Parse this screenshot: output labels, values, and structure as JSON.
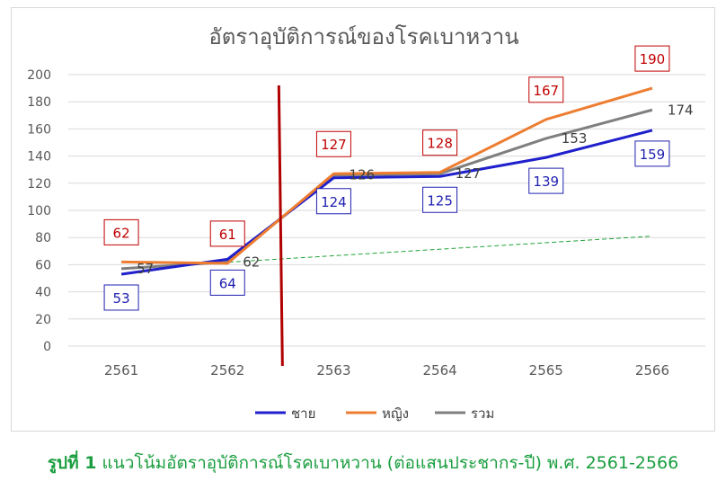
{
  "chart_data": {
    "type": "line",
    "title": "อัตราอุบัติการณ์ของโรคเบาหวาน",
    "categories": [
      "2561",
      "2562",
      "2563",
      "2564",
      "2565",
      "2566"
    ],
    "ylim": [
      0,
      200
    ],
    "yticks": [
      0,
      20,
      40,
      60,
      80,
      100,
      120,
      140,
      160,
      180,
      200
    ],
    "grid": true,
    "legend_position": "bottom",
    "series": [
      {
        "name": "ชาย",
        "color": "#1f1fcc",
        "values": [
          53,
          64,
          124,
          125,
          139,
          159
        ],
        "labels": [
          "53",
          "64",
          "124",
          "125",
          "139",
          "159"
        ]
      },
      {
        "name": "หญิง",
        "color": "#ed7d31",
        "values": [
          62,
          61,
          127,
          128,
          167,
          190
        ],
        "labels": [
          "62",
          "61",
          "127",
          "128",
          "167",
          "190"
        ]
      },
      {
        "name": "รวม",
        "color": "#7f7f7f",
        "values": [
          57,
          62,
          126,
          127,
          153,
          174
        ],
        "labels": [
          "57",
          "62",
          "126",
          "127",
          "153",
          "174"
        ]
      }
    ],
    "trendline": {
      "color": "#22a33a",
      "from": 57,
      "to": 81
    },
    "divider": {
      "color": "#b00000",
      "between": [
        "2562",
        "2563"
      ]
    }
  },
  "caption": {
    "bold": "รูปที่ 1",
    "text": " แนวโน้มอัตราอุบัติการณ์โรคเบาหวาน (ต่อแสนประชากร-ปี) พ.ศ. 2561-2566"
  }
}
